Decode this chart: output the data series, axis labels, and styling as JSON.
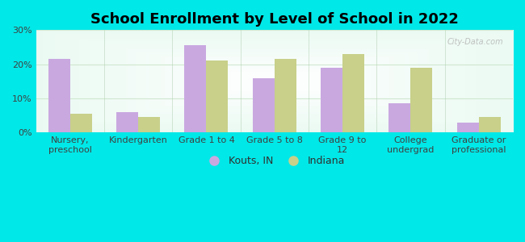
{
  "title": "School Enrollment by Level of School in 2022",
  "categories": [
    "Nursery,\npreschool",
    "Kindergarten",
    "Grade 1 to 4",
    "Grade 5 to 8",
    "Grade 9 to\n12",
    "College\nundergrad",
    "Graduate or\nprofessional"
  ],
  "kouts": [
    21.5,
    6.0,
    25.5,
    16.0,
    19.0,
    8.5,
    3.0
  ],
  "indiana": [
    5.5,
    4.5,
    21.0,
    21.5,
    23.0,
    19.0,
    4.5
  ],
  "kouts_color": "#c9a8e0",
  "indiana_color": "#c8d08a",
  "background_outer": "#00e8e8",
  "ylim": [
    0,
    30
  ],
  "yticks": [
    0,
    10,
    20,
    30
  ],
  "legend_labels": [
    "Kouts, IN",
    "Indiana"
  ],
  "bar_width": 0.32,
  "title_fontsize": 13,
  "tick_fontsize": 8,
  "legend_fontsize": 9,
  "watermark": "City-Data.com"
}
